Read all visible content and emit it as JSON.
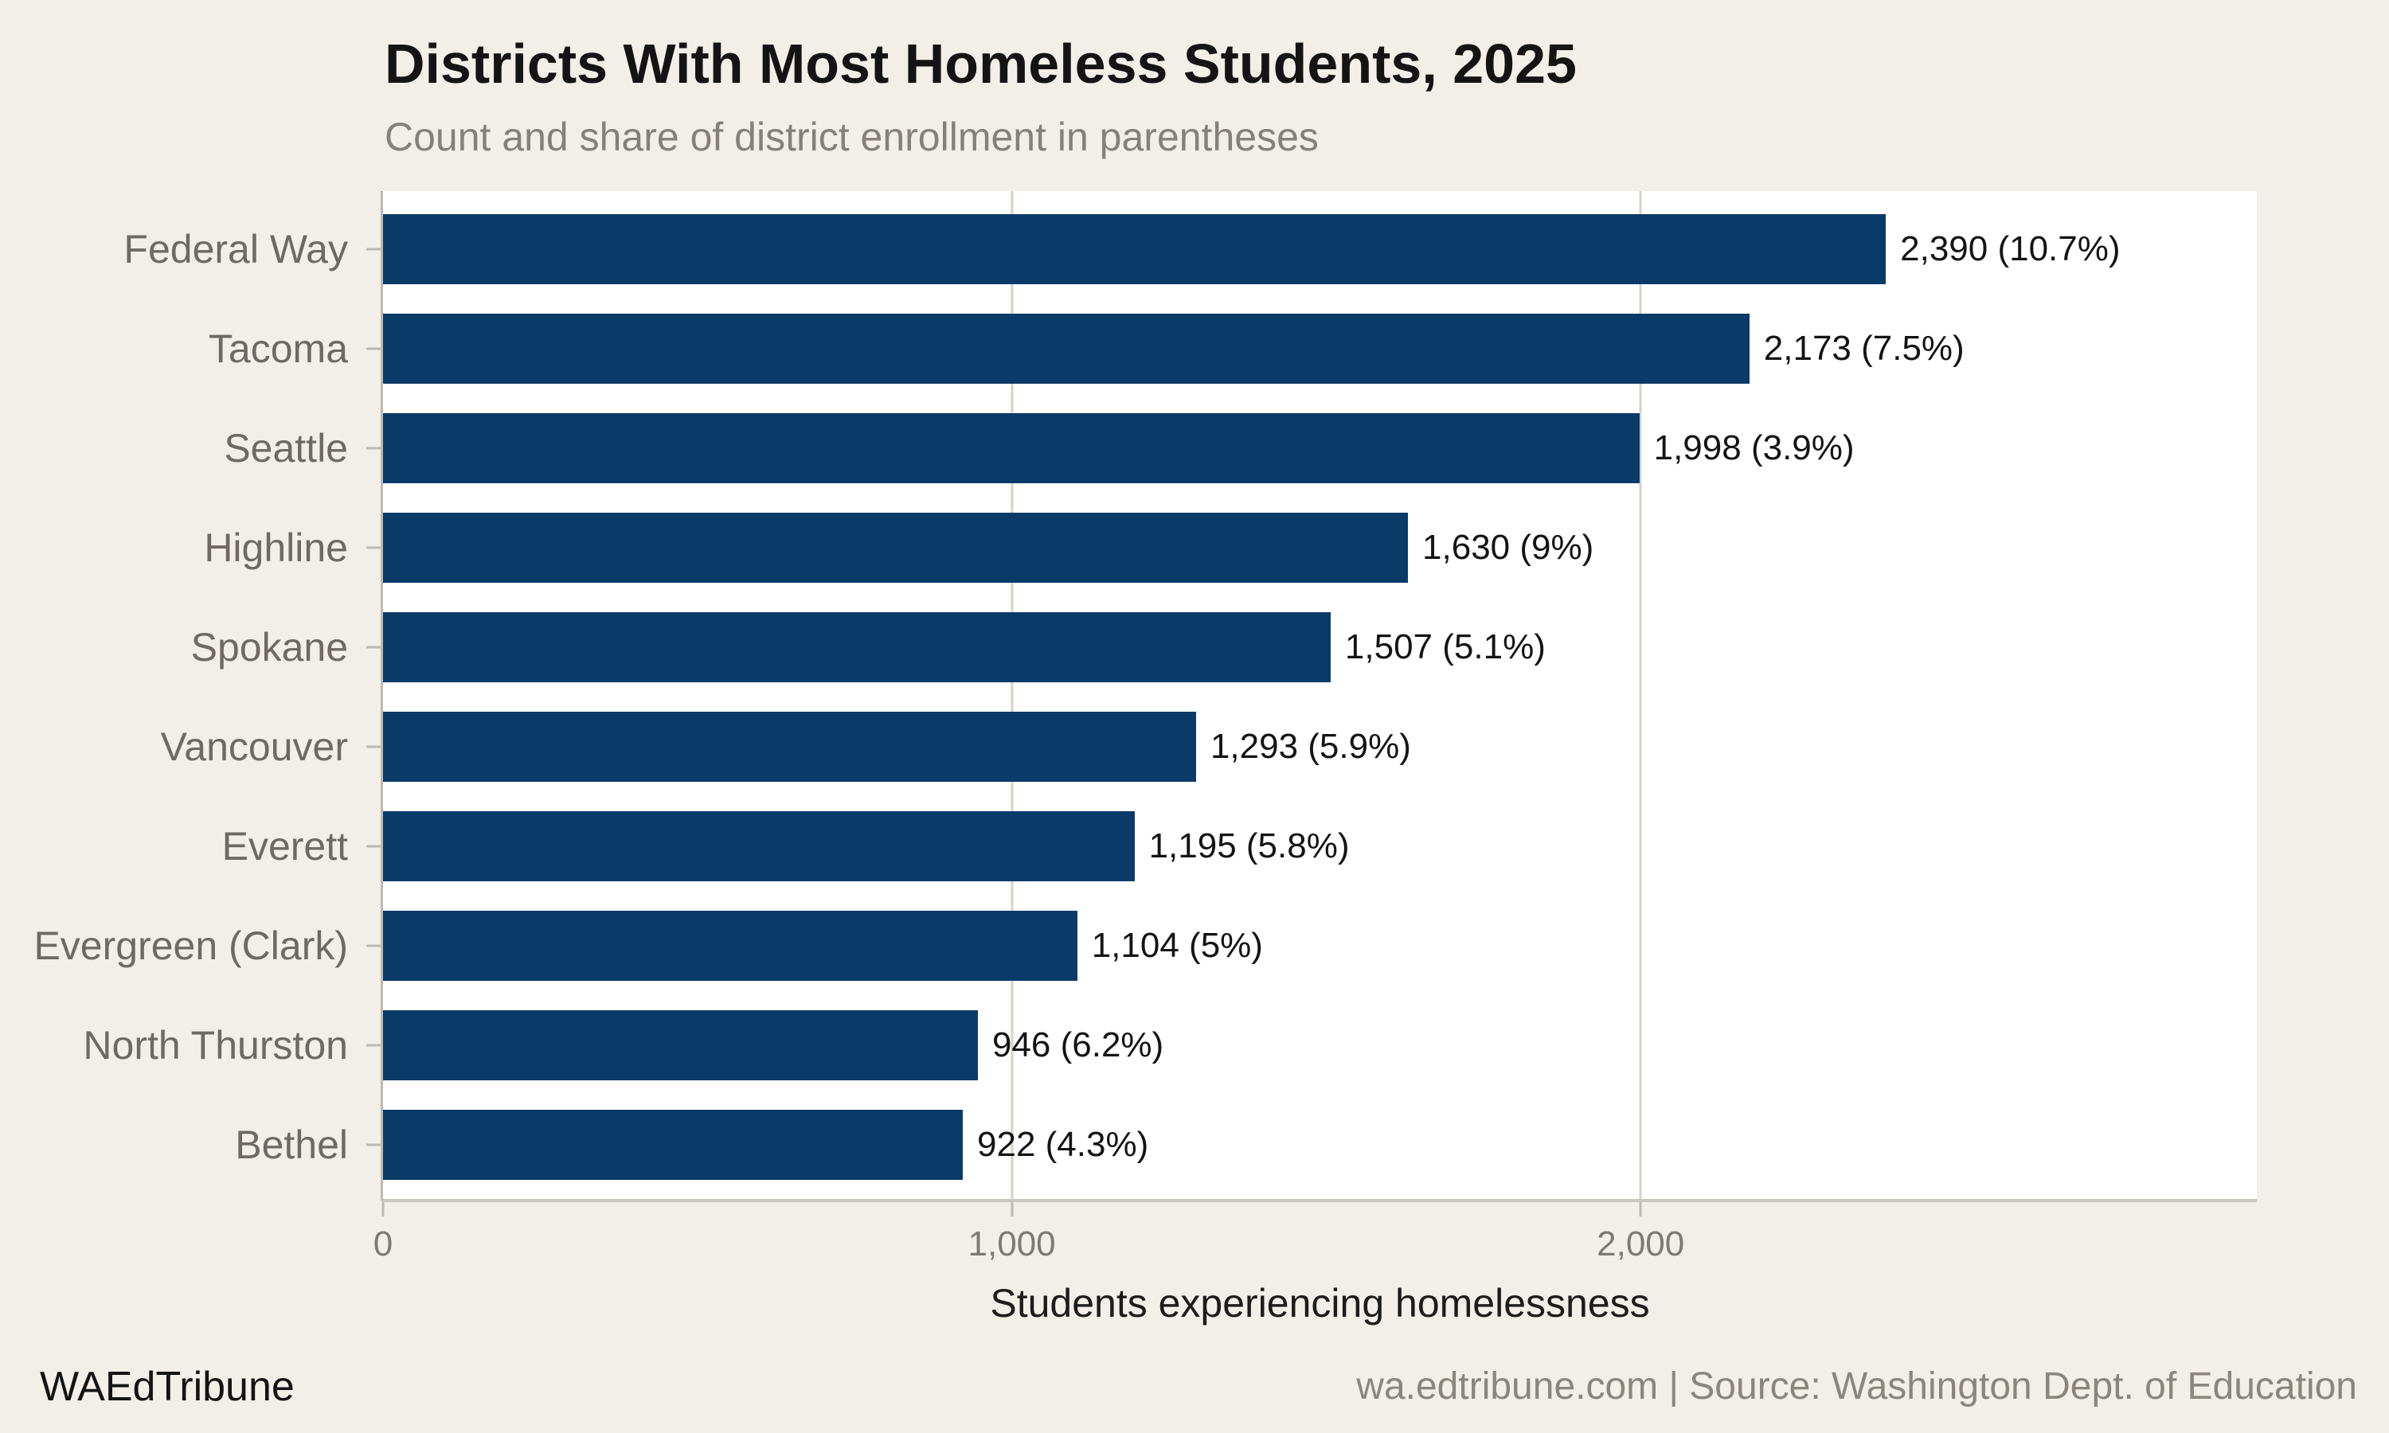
{
  "header": {
    "title": "Districts With Most Homeless Students, 2025",
    "subtitle": "Count and share of district enrollment in parentheses"
  },
  "chart_data": {
    "type": "bar",
    "orientation": "horizontal",
    "title": "Districts With Most Homeless Students, 2025",
    "subtitle": "Count and share of district enrollment in parentheses",
    "categories": [
      "Federal Way",
      "Tacoma",
      "Seattle",
      "Highline",
      "Spokane",
      "Vancouver",
      "Everett",
      "Evergreen (Clark)",
      "North Thurston",
      "Bethel"
    ],
    "values": [
      2390,
      2173,
      1998,
      1630,
      1507,
      1293,
      1195,
      1104,
      946,
      922
    ],
    "share_of_enrollment_pct": [
      10.7,
      7.5,
      3.9,
      9,
      5.1,
      5.9,
      5.8,
      5,
      6.2,
      4.3
    ],
    "bar_labels": [
      "2,390 (10.7%)",
      "2,173 (7.5%)",
      "1,998 (3.9%)",
      "1,630 (9%)",
      "1,507 (5.1%)",
      "1,293 (5.9%)",
      "1,195 (5.8%)",
      "1,104 (5%)",
      "946 (6.2%)",
      "922 (4.3%)"
    ],
    "xlabel": "Students experiencing homelessness",
    "ylabel": "",
    "x_ticks": [
      {
        "value": 0,
        "label": "0"
      },
      {
        "value": 1000,
        "label": "1,000"
      },
      {
        "value": 2000,
        "label": "2,000"
      }
    ],
    "xlim": [
      0,
      2980
    ],
    "grid": "vertical-at-x-ticks",
    "legend": "none"
  },
  "footer": {
    "brand": "WAEdTribune",
    "source": "wa.edtribune.com | Source: Washington Dept. of Education"
  },
  "style": {
    "background": "#f2efe8",
    "plot_background": "#ffffff",
    "bar_color": "#0a3a68",
    "grid_color": "#d6d2ca",
    "axis_color": "#bdb9b0",
    "baseline_color": "#cbc7bf",
    "title_color": "#141414",
    "subtitle_color": "#85817a",
    "y_label_color": "#6e6a63",
    "x_tick_label_color": "#7e7a73",
    "x_axis_title_color": "#1c1c1c",
    "value_label_color": "#141414",
    "source_color": "#8a867e"
  }
}
